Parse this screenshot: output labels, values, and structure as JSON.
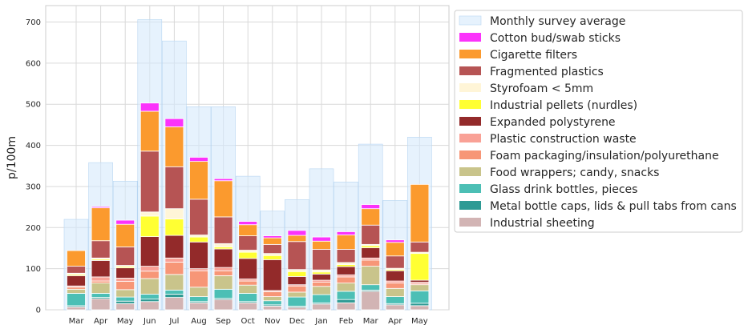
{
  "chart_data": {
    "type": "bar",
    "stacked": true,
    "ylabel": "p/100m",
    "xlabel": "",
    "title": "",
    "ylim": [
      0,
      740
    ],
    "yticks": [
      0,
      100,
      200,
      300,
      400,
      500,
      600,
      700
    ],
    "grid": true,
    "legend_position": "outside-right",
    "categories": [
      "Mar",
      "Apr",
      "May",
      "Jun",
      "Jul",
      "Aug",
      "Sep",
      "Oct",
      "Nov",
      "Dec",
      "Jan",
      "Feb",
      "Mar",
      "Apr",
      "May"
    ],
    "background_series": {
      "name": "Monthly survey average",
      "color": "#d6e9fb",
      "values": [
        [
          220
        ],
        [
          358,
          358
        ],
        [
          313,
          313
        ],
        [
          706,
          706
        ],
        [
          654,
          654
        ],
        [
          494,
          494
        ],
        [
          494,
          494
        ],
        [
          325,
          325
        ],
        [
          240,
          240
        ],
        [
          268,
          268
        ],
        [
          343,
          343
        ],
        [
          311,
          311
        ],
        [
          403,
          403
        ],
        [
          266,
          266
        ],
        [
          420,
          420
        ]
      ]
    },
    "survey_average": [
      {
        "month_index": 0,
        "value": 220
      },
      {
        "month_index": 1,
        "value": 358
      },
      {
        "month_index": 2,
        "value": 313
      },
      {
        "month_index": 3,
        "value": 706
      },
      {
        "month_index": 4,
        "value": 654
      },
      {
        "month_index": 5,
        "value": 494
      },
      {
        "month_index": 6,
        "value": 494
      },
      {
        "month_index": 7,
        "value": 325
      },
      {
        "month_index": 8,
        "value": 240
      },
      {
        "month_index": 9,
        "value": 268
      },
      {
        "month_index": 10,
        "value": 343
      },
      {
        "month_index": 11,
        "value": 311
      },
      {
        "month_index": 12,
        "value": 403
      },
      {
        "month_index": 13,
        "value": 266
      },
      {
        "month_index": 14,
        "value": 420
      }
    ],
    "series": [
      {
        "name": "Industrial sheeting",
        "color": "#d2b4b4",
        "values": [
          7,
          27,
          15,
          20,
          30,
          17,
          25,
          17,
          9,
          6,
          14,
          17,
          45,
          12,
          10
        ]
      },
      {
        "name": "Metal bottle caps, lids & pull tabs from cans",
        "color": "#2e9a94",
        "values": [
          3,
          3,
          6,
          6,
          8,
          3,
          3,
          3,
          3,
          3,
          3,
          8,
          3,
          3,
          6
        ]
      },
      {
        "name": "Glass drink bottles, pieces",
        "color": "#4cbfb5",
        "values": [
          30,
          10,
          10,
          12,
          10,
          12,
          22,
          20,
          10,
          22,
          20,
          20,
          13,
          17,
          30
        ]
      },
      {
        "name": "Food wrappers; candy, snacks",
        "color": "#c9c48b",
        "values": [
          10,
          25,
          18,
          38,
          38,
          23,
          33,
          20,
          10,
          12,
          20,
          20,
          45,
          20,
          15
        ]
      },
      {
        "name": "Foam packaging/insulation/polyurethane",
        "color": "#f79677",
        "values": [
          5,
          5,
          20,
          18,
          30,
          40,
          12,
          10,
          12,
          15,
          10,
          15,
          15,
          13,
          3
        ]
      },
      {
        "name": "Plastic construction waste",
        "color": "#f9a196",
        "values": [
          3,
          10,
          8,
          12,
          10,
          5,
          8,
          5,
          3,
          3,
          5,
          5,
          5,
          5,
          3
        ]
      },
      {
        "name": "Expanded polystyrene",
        "color": "#932a2a",
        "values": [
          25,
          40,
          25,
          72,
          55,
          65,
          45,
          50,
          75,
          20,
          15,
          20,
          25,
          25,
          5
        ]
      },
      {
        "name": "Industrial pellets (nurdles)",
        "color": "#ffff33",
        "values": [
          3,
          3,
          3,
          50,
          40,
          12,
          5,
          15,
          10,
          12,
          5,
          5,
          5,
          3,
          65
        ]
      },
      {
        "name": "Styrofoam < 5mm",
        "color": "#fff5d7",
        "values": [
          3,
          3,
          3,
          10,
          25,
          5,
          8,
          5,
          5,
          5,
          5,
          5,
          3,
          3,
          3
        ]
      },
      {
        "name": "Fragmented plastics",
        "color": "#b65454",
        "values": [
          17,
          42,
          45,
          148,
          102,
          87,
          65,
          35,
          22,
          68,
          50,
          32,
          47,
          30,
          25
        ]
      },
      {
        "name": "Cigarette filters",
        "color": "#fb9a2e",
        "values": [
          38,
          80,
          55,
          97,
          97,
          92,
          88,
          27,
          16,
          15,
          20,
          35,
          40,
          33,
          140
        ]
      },
      {
        "name": "Cotton bud/swab sticks",
        "color": "#fb33fb",
        "values": [
          0,
          3,
          10,
          20,
          20,
          10,
          5,
          8,
          5,
          12,
          10,
          8,
          10,
          6,
          0
        ]
      }
    ]
  }
}
